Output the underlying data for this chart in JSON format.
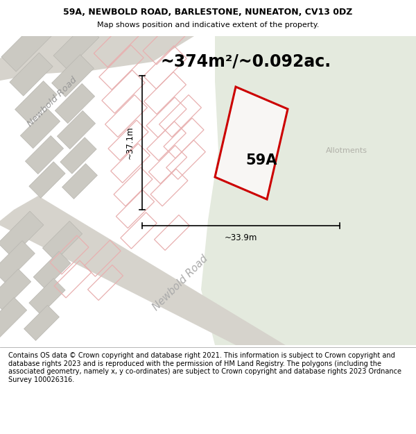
{
  "title_line1": "59A, NEWBOLD ROAD, BARLESTONE, NUNEATON, CV13 0DZ",
  "title_line2": "Map shows position and indicative extent of the property.",
  "footer_text": "Contains OS data © Crown copyright and database right 2021. This information is subject to Crown copyright and database rights 2023 and is reproduced with the permission of HM Land Registry. The polygons (including the associated geometry, namely x, y co-ordinates) are subject to Crown copyright and database rights 2023 Ordnance Survey 100026316.",
  "area_label": "~374m²/~0.092ac.",
  "label_59A": "59A",
  "dim_height": "~37.1m",
  "dim_width": "~33.9m",
  "allotments_label": "Allotments",
  "road_label": "Newbold Road",
  "bg_map_color": "#f0eeeb",
  "bg_green_color": "#e4eade",
  "road_fill": "#d6d3cc",
  "building_fill": "#cbc9c2",
  "building_outline": "#b8b6b0",
  "prop_outline_color": "#e8b0b0",
  "subject_fill": "#f8f6f4",
  "subject_outline": "#cc0000",
  "title_fontsize": 9,
  "subtitle_fontsize": 8,
  "footer_fontsize": 7,
  "area_fontsize": 17,
  "label_fontsize": 15,
  "dim_fontsize": 8.5,
  "road_label_fontsize": 9.5,
  "allotments_fontsize": 8
}
